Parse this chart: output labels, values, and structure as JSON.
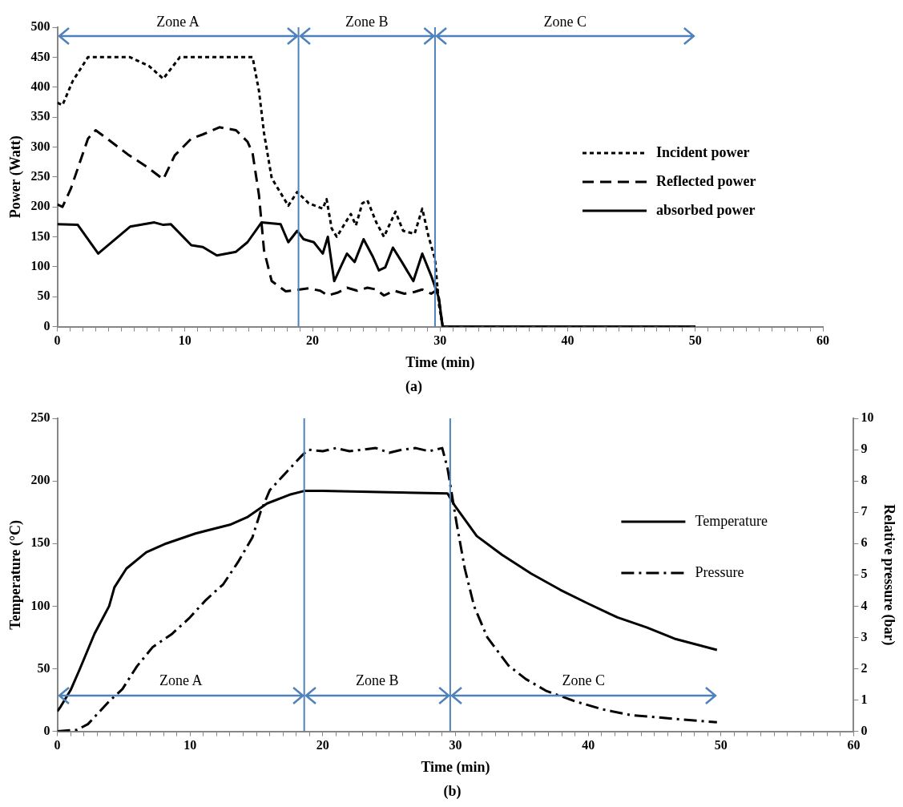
{
  "chart_data": [
    {
      "type": "line",
      "title": "(a)",
      "xlabel": "Time (min)",
      "ylabel": "Power (Watt)",
      "legend": "right",
      "xlim": [
        0,
        60
      ],
      "xticks": [
        0,
        {
          "value": 1,
          "label": null
        },
        {
          "value": 2,
          "label": null
        },
        {
          "value": 3,
          "label": null
        },
        {
          "value": 4,
          "label": null
        },
        {
          "value": 5,
          "label": null
        },
        {
          "value": 6,
          "label": null
        },
        {
          "value": 7,
          "label": null
        },
        {
          "value": 8,
          "label": null
        },
        {
          "value": 9,
          "label": null
        },
        10,
        {
          "value": 11,
          "label": null
        },
        {
          "value": 12,
          "label": null
        },
        {
          "value": 13,
          "label": null
        },
        {
          "value": 14,
          "label": null
        },
        {
          "value": 15,
          "label": null
        },
        {
          "value": 16,
          "label": null
        },
        {
          "value": 17,
          "label": null
        },
        {
          "value": 18,
          "label": null
        },
        {
          "value": 19,
          "label": null
        },
        20,
        {
          "value": 21,
          "label": null
        },
        {
          "value": 22,
          "label": null
        },
        {
          "value": 23,
          "label": null
        },
        {
          "value": 24,
          "label": null
        },
        {
          "value": 25,
          "label": null
        },
        {
          "value": 26,
          "label": null
        },
        {
          "value": 27,
          "label": null
        },
        {
          "value": 28,
          "label": null
        },
        {
          "value": 29,
          "label": null
        },
        30,
        {
          "value": 31,
          "label": null
        },
        {
          "value": 32,
          "label": null
        },
        {
          "value": 33,
          "label": null
        },
        {
          "value": 34,
          "label": null
        },
        {
          "value": 35,
          "label": null
        },
        {
          "value": 36,
          "label": null
        },
        {
          "value": 37,
          "label": null
        },
        {
          "value": 38,
          "label": null
        },
        {
          "value": 39,
          "label": null
        },
        40,
        {
          "value": 41,
          "label": null
        },
        {
          "value": 42,
          "label": null
        },
        {
          "value": 43,
          "label": null
        },
        {
          "value": 44,
          "label": null
        },
        {
          "value": 45,
          "label": null
        },
        {
          "value": 46,
          "label": null
        },
        {
          "value": 47,
          "label": null
        },
        {
          "value": 48,
          "label": null
        },
        {
          "value": 49,
          "label": null
        },
        50,
        {
          "value": 51,
          "label": null
        },
        {
          "value": 52,
          "label": null
        },
        {
          "value": 53,
          "label": null
        },
        {
          "value": 54,
          "label": null
        },
        {
          "value": 55,
          "label": null
        },
        {
          "value": 56,
          "label": null
        },
        {
          "value": 57,
          "label": null
        },
        {
          "value": 58,
          "label": null
        },
        {
          "value": 59,
          "label": null
        },
        60
      ],
      "ylim": [
        0,
        500
      ],
      "yticks": [
        0,
        50,
        100,
        150,
        200,
        250,
        300,
        350,
        400,
        450,
        500
      ],
      "ref_lines": [
        {
          "axis": "x",
          "value": 18.9,
          "color": "#4f81bd"
        },
        {
          "axis": "x",
          "value": 29.6,
          "color": "#4f81bd"
        }
      ],
      "annotations": [
        "Zone A",
        "Zone B",
        "Zone C"
      ],
      "series": [
        {
          "name": "Incident power",
          "color": "#000000",
          "line_style": "dotted",
          "x": [
            0,
            0.4,
            1.2,
            2.4,
            5.7,
            7.2,
            8.3,
            9.6,
            15.3,
            15.8,
            16.2,
            16.8,
            18.1,
            18.8,
            19.7,
            20.8,
            21.1,
            21.5,
            21.9,
            22.7,
            23.0,
            23.4,
            23.9,
            24.3,
            25.0,
            25.6,
            26.5,
            27.1,
            28.0,
            28.6,
            29.1,
            29.6,
            29.9,
            30.2,
            50
          ],
          "values": [
            374,
            370,
            410,
            450,
            450,
            435,
            414,
            450,
            450,
            394,
            323,
            248,
            202,
            225,
            206,
            197,
            213,
            164,
            150,
            178,
            188,
            169,
            206,
            211,
            174,
            150,
            192,
            160,
            155,
            197,
            150,
            113,
            38,
            0,
            0
          ]
        },
        {
          "name": "Reflected power",
          "color": "#000000",
          "line_style": "dashed",
          "x": [
            0,
            0.4,
            1.05,
            2.4,
            3.0,
            3.9,
            5.5,
            7.0,
            8.3,
            9.2,
            10.5,
            11.4,
            12.7,
            14.0,
            14.9,
            15.3,
            15.8,
            16.2,
            16.8,
            17.9,
            19.0,
            19.7,
            20.6,
            21.2,
            22.0,
            22.7,
            23.5,
            24.3,
            25.0,
            25.6,
            26.4,
            27.2,
            28.0,
            28.6,
            29.3,
            29.8,
            30.2,
            50
          ],
          "values": [
            204,
            200,
            230,
            314,
            328,
            314,
            288,
            267,
            246,
            286,
            314,
            321,
            333,
            328,
            309,
            290,
            220,
            127,
            76,
            59,
            62,
            64,
            60,
            52,
            57,
            65,
            60,
            65,
            62,
            52,
            60,
            55,
            58,
            62,
            55,
            62,
            0,
            0
          ]
        },
        {
          "name": "absorbed power",
          "color": "#000000",
          "line_style": "solid",
          "x": [
            0,
            1.6,
            3.2,
            5.7,
            7.6,
            8.3,
            8.9,
            10.5,
            11.4,
            12.5,
            14.0,
            14.9,
            16.0,
            17.5,
            18.1,
            18.8,
            19.3,
            20.1,
            20.8,
            21.2,
            21.7,
            22.3,
            22.7,
            23.3,
            24.0,
            24.7,
            25.2,
            25.7,
            26.3,
            27.0,
            27.9,
            28.6,
            29.3,
            29.9,
            30.2,
            50
          ],
          "values": [
            171,
            170,
            122,
            167,
            174,
            170,
            171,
            136,
            133,
            119,
            125,
            141,
            174,
            171,
            141,
            160,
            146,
            141,
            122,
            150,
            76,
            104,
            122,
            108,
            146,
            118,
            94,
            99,
            132,
            108,
            76,
            122,
            85,
            48,
            0,
            0
          ]
        }
      ]
    },
    {
      "type": "line",
      "title": "(b)",
      "xlabel": "Time (min)",
      "ylabel": "Temperature (°C)",
      "y2label": "Relative pressure (bar)",
      "legend": "right",
      "xlim": [
        0,
        60
      ],
      "xticks": [
        0,
        {
          "value": 1,
          "label": null
        },
        {
          "value": 2,
          "label": null
        },
        {
          "value": 3,
          "label": null
        },
        {
          "value": 4,
          "label": null
        },
        {
          "value": 5,
          "label": null
        },
        {
          "value": 6,
          "label": null
        },
        {
          "value": 7,
          "label": null
        },
        {
          "value": 8,
          "label": null
        },
        {
          "value": 9,
          "label": null
        },
        10,
        {
          "value": 11,
          "label": null
        },
        {
          "value": 12,
          "label": null
        },
        {
          "value": 13,
          "label": null
        },
        {
          "value": 14,
          "label": null
        },
        {
          "value": 15,
          "label": null
        },
        {
          "value": 16,
          "label": null
        },
        {
          "value": 17,
          "label": null
        },
        {
          "value": 18,
          "label": null
        },
        {
          "value": 19,
          "label": null
        },
        20,
        {
          "value": 21,
          "label": null
        },
        {
          "value": 22,
          "label": null
        },
        {
          "value": 23,
          "label": null
        },
        {
          "value": 24,
          "label": null
        },
        {
          "value": 25,
          "label": null
        },
        {
          "value": 26,
          "label": null
        },
        {
          "value": 27,
          "label": null
        },
        {
          "value": 28,
          "label": null
        },
        {
          "value": 29,
          "label": null
        },
        30,
        {
          "value": 31,
          "label": null
        },
        {
          "value": 32,
          "label": null
        },
        {
          "value": 33,
          "label": null
        },
        {
          "value": 34,
          "label": null
        },
        {
          "value": 35,
          "label": null
        },
        {
          "value": 36,
          "label": null
        },
        {
          "value": 37,
          "label": null
        },
        {
          "value": 38,
          "label": null
        },
        {
          "value": 39,
          "label": null
        },
        40,
        {
          "value": 41,
          "label": null
        },
        {
          "value": 42,
          "label": null
        },
        {
          "value": 43,
          "label": null
        },
        {
          "value": 44,
          "label": null
        },
        {
          "value": 45,
          "label": null
        },
        {
          "value": 46,
          "label": null
        },
        {
          "value": 47,
          "label": null
        },
        {
          "value": 48,
          "label": null
        },
        {
          "value": 49,
          "label": null
        },
        50,
        {
          "value": 51,
          "label": null
        },
        {
          "value": 52,
          "label": null
        },
        {
          "value": 53,
          "label": null
        },
        {
          "value": 54,
          "label": null
        },
        {
          "value": 55,
          "label": null
        },
        {
          "value": 56,
          "label": null
        },
        {
          "value": 57,
          "label": null
        },
        {
          "value": 58,
          "label": null
        },
        {
          "value": 59,
          "label": null
        },
        60
      ],
      "ylim": [
        0,
        250
      ],
      "yticks": [
        0,
        50,
        100,
        150,
        200,
        250
      ],
      "y2lim": [
        0,
        10
      ],
      "y2ticks": [
        0,
        1,
        2,
        3,
        4,
        5,
        6,
        7,
        8,
        9,
        10
      ],
      "ref_lines": [
        {
          "axis": "x",
          "value": 18.6,
          "color": "#4f81bd"
        },
        {
          "axis": "x",
          "value": 29.6,
          "color": "#4f81bd"
        }
      ],
      "annotations": [
        "Zone A",
        "Zone B",
        "Zone C"
      ],
      "series": [
        {
          "name": "Temperature",
          "color": "#000000",
          "line_style": "solid",
          "x": [
            0,
            0.2,
            1.0,
            1.7,
            2.8,
            3.9,
            4.3,
            5.2,
            6.7,
            8.2,
            10.4,
            13.0,
            14.3,
            15.8,
            17.5,
            18.6,
            20,
            25,
            29.4,
            29.9,
            31.6,
            33.5,
            35.7,
            37.9,
            40.0,
            42.2,
            44.4,
            46.5,
            49.7
          ],
          "values": [
            16,
            19,
            33,
            50,
            78,
            100,
            115,
            130,
            143,
            150,
            158,
            165,
            171,
            182,
            189,
            192,
            192,
            191,
            190,
            181,
            156,
            141,
            126,
            113,
            102,
            91,
            83,
            74,
            65
          ]
        },
        {
          "name": "Pressure",
          "color": "#000000",
          "line_style": "dashdot",
          "axis": "y2",
          "x": [
            0,
            1.5,
            2.3,
            3.9,
            4.9,
            6.0,
            7.2,
            8.6,
            9.9,
            11.2,
            12.5,
            13.6,
            14.7,
            15.3,
            16.0,
            17.3,
            18.4,
            18.9,
            20,
            21,
            22,
            23,
            24,
            25,
            26,
            27,
            28,
            29,
            29.4,
            29.6,
            30.1,
            30.7,
            31.4,
            32.4,
            34.0,
            35.3,
            36.8,
            39.0,
            41.1,
            43.2,
            46.5,
            49.7
          ],
          "values": [
            0,
            0.05,
            0.23,
            0.96,
            1.35,
            2.08,
            2.7,
            3.1,
            3.6,
            4.2,
            4.7,
            5.4,
            6.2,
            7.0,
            7.7,
            8.3,
            8.8,
            9.0,
            8.95,
            9.05,
            8.95,
            9.0,
            9.05,
            8.9,
            9.0,
            9.05,
            8.95,
            9.05,
            8.4,
            7.9,
            6.6,
            5.2,
            4.0,
            3.0,
            2.1,
            1.67,
            1.3,
            0.96,
            0.7,
            0.52,
            0.4,
            0.29
          ]
        }
      ]
    }
  ]
}
